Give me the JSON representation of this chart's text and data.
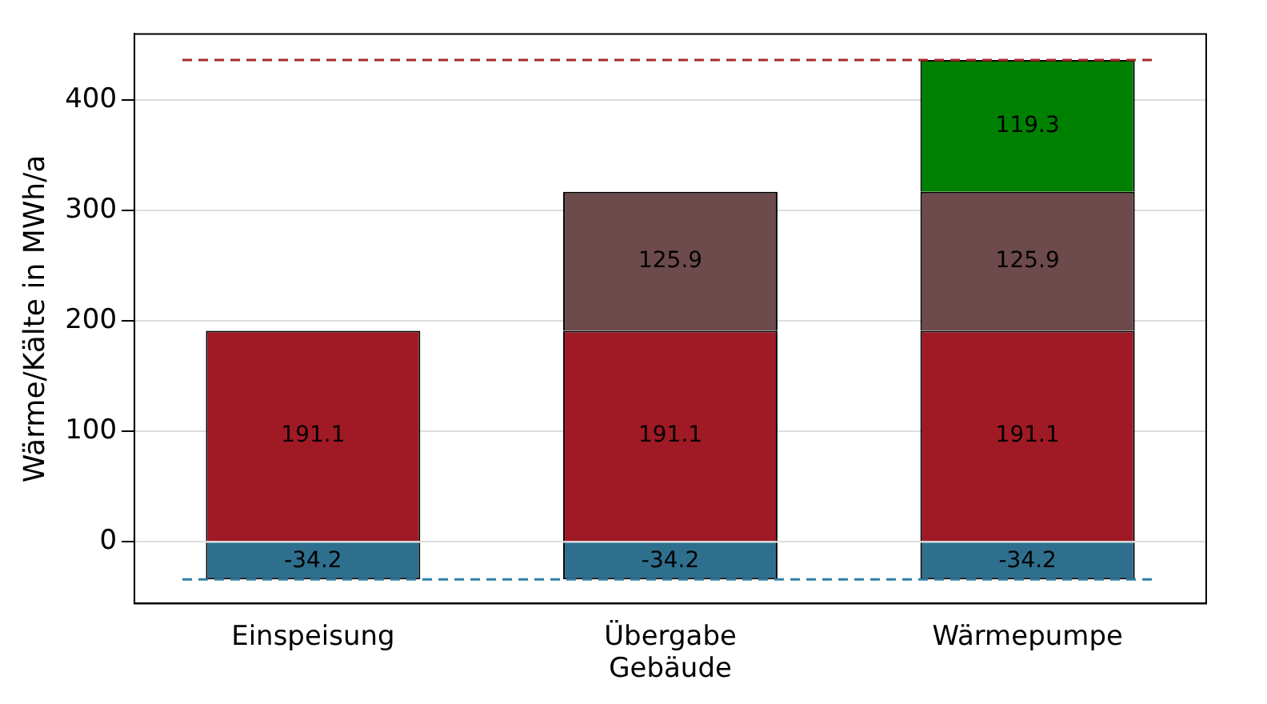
{
  "chart_data": {
    "type": "bar",
    "stacked": true,
    "ylabel": "Wärme/Kälte in MWh/a",
    "categories": [
      "Einspeisung",
      "Übergabe\nGebäude",
      "Wärmepumpe"
    ],
    "series": [
      {
        "color": "#2e6f8e",
        "values": [
          -34.2,
          -34.2,
          -34.2
        ]
      },
      {
        "color": "#a01a25",
        "values": [
          191.1,
          191.1,
          191.1
        ]
      },
      {
        "color": "#6d4a4c",
        "values": [
          null,
          125.9,
          125.9
        ]
      },
      {
        "color": "#008000",
        "values": [
          null,
          null,
          119.3
        ]
      }
    ],
    "ylim": [
      -56,
      460
    ],
    "yticks": [
      0,
      100,
      200,
      300,
      400
    ],
    "grid": "y",
    "data_labels": true,
    "legend": false,
    "ref_lines": [
      {
        "axis": "y",
        "value": 436.3,
        "color": "#a52a2a",
        "line_style": "dashed"
      },
      {
        "axis": "y",
        "value": -34.2,
        "color": "#2e7fa8",
        "line_style": "dashed"
      }
    ]
  }
}
